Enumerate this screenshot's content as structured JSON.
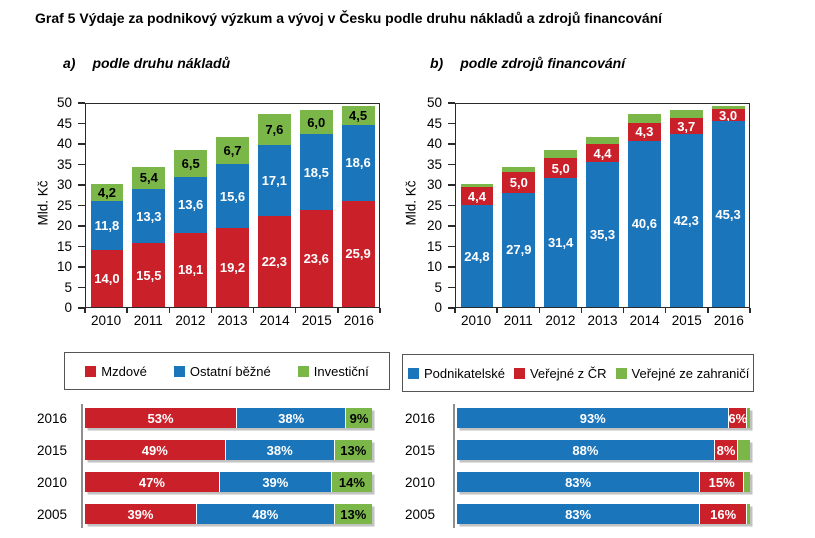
{
  "title": "Graf 5 Výdaje za podnikový výzkum a vývoj v Česku podle druhu nákladů a zdrojů financování",
  "palette": {
    "red": "#C9202A",
    "blue": "#1B75BB",
    "green": "#7AB648"
  },
  "chart_data": [
    {
      "type": "bar",
      "stacked": true,
      "prefix": "a)",
      "subtitle": "podle druhu nákladů",
      "ylabel": "Mld. Kč",
      "ymax": 50,
      "ystep": 5,
      "grid": false,
      "legend_position": "bottom",
      "categories": [
        "2010",
        "2011",
        "2012",
        "2013",
        "2014",
        "2015",
        "2016"
      ],
      "series": [
        {
          "name": "Mzdové",
          "color": "red",
          "label_color": "#FFFFFF",
          "values": [
            14.0,
            15.5,
            18.1,
            19.2,
            22.3,
            23.6,
            25.9
          ],
          "labels": [
            "14,0",
            "15,5",
            "18,1",
            "19,2",
            "22,3",
            "23,6",
            "25,9"
          ]
        },
        {
          "name": "Ostatní běžné",
          "color": "blue",
          "label_color": "#FFFFFF",
          "values": [
            11.8,
            13.3,
            13.6,
            15.6,
            17.1,
            18.5,
            18.6
          ],
          "labels": [
            "11,8",
            "13,3",
            "13,6",
            "15,6",
            "17,1",
            "18,5",
            "18,6"
          ]
        },
        {
          "name": "Investiční",
          "color": "green",
          "label_color": "#000000",
          "values": [
            4.2,
            5.4,
            6.5,
            6.7,
            7.6,
            6.0,
            4.5
          ],
          "labels": [
            "4,2",
            "5,4",
            "6,5",
            "6,7",
            "7,6",
            "6,0",
            "4,5"
          ]
        }
      ]
    },
    {
      "type": "bar",
      "stacked": true,
      "prefix": "b)",
      "subtitle": "podle zdrojů financování",
      "ylabel": "Mld. Kč",
      "ymax": 50,
      "ystep": 5,
      "grid": false,
      "legend_position": "bottom",
      "categories": [
        "2010",
        "2011",
        "2012",
        "2013",
        "2014",
        "2015",
        "2016"
      ],
      "series": [
        {
          "name": "Podnikatelské",
          "color": "blue",
          "label_color": "#FFFFFF",
          "values": [
            24.8,
            27.9,
            31.4,
            35.3,
            40.6,
            42.3,
            45.3
          ],
          "labels": [
            "24,8",
            "27,9",
            "31,4",
            "35,3",
            "40,6",
            "42,3",
            "45,3"
          ]
        },
        {
          "name": "Veřejné z ČR",
          "color": "red",
          "label_color": "#FFFFFF",
          "values": [
            4.4,
            5.0,
            5.0,
            4.4,
            4.3,
            3.7,
            3.0
          ],
          "labels": [
            "4,4",
            "5,0",
            "5,0",
            "4,4",
            "4,3",
            "3,7",
            "3,0"
          ]
        },
        {
          "name": "Veřejné ze zahraničí",
          "color": "green",
          "label_color": "#000000",
          "values": [
            0.8,
            1.3,
            1.8,
            1.8,
            2.1,
            2.1,
            0.7
          ],
          "labels": [
            "",
            "",
            "",
            "",
            "",
            "",
            ""
          ]
        }
      ]
    },
    {
      "type": "bar",
      "orientation": "horizontal",
      "stacked": true,
      "unit": "percent",
      "rows": [
        {
          "year": "2016",
          "segments": [
            {
              "color": "red",
              "value": 53,
              "label": "53%",
              "label_color": "#FFFFFF"
            },
            {
              "color": "blue",
              "value": 38,
              "label": "38%",
              "label_color": "#FFFFFF"
            },
            {
              "color": "green",
              "value": 9,
              "label": "9%",
              "label_color": "#000000"
            }
          ]
        },
        {
          "year": "2015",
          "segments": [
            {
              "color": "red",
              "value": 49,
              "label": "49%",
              "label_color": "#FFFFFF"
            },
            {
              "color": "blue",
              "value": 38,
              "label": "38%",
              "label_color": "#FFFFFF"
            },
            {
              "color": "green",
              "value": 13,
              "label": "13%",
              "label_color": "#000000"
            }
          ]
        },
        {
          "year": "2010",
          "segments": [
            {
              "color": "red",
              "value": 47,
              "label": "47%",
              "label_color": "#FFFFFF"
            },
            {
              "color": "blue",
              "value": 39,
              "label": "39%",
              "label_color": "#FFFFFF"
            },
            {
              "color": "green",
              "value": 14,
              "label": "14%",
              "label_color": "#000000"
            }
          ]
        },
        {
          "year": "2005",
          "segments": [
            {
              "color": "red",
              "value": 39,
              "label": "39%",
              "label_color": "#FFFFFF"
            },
            {
              "color": "blue",
              "value": 48,
              "label": "48%",
              "label_color": "#FFFFFF"
            },
            {
              "color": "green",
              "value": 13,
              "label": "13%",
              "label_color": "#000000"
            }
          ]
        }
      ]
    },
    {
      "type": "bar",
      "orientation": "horizontal",
      "stacked": true,
      "unit": "percent",
      "rows": [
        {
          "year": "2016",
          "segments": [
            {
              "color": "blue",
              "value": 93,
              "label": "93%",
              "label_color": "#FFFFFF"
            },
            {
              "color": "red",
              "value": 6,
              "label": "6%",
              "label_color": "#FFFFFF"
            },
            {
              "color": "green",
              "value": 1,
              "label": "",
              "label_color": "#000000"
            }
          ]
        },
        {
          "year": "2015",
          "segments": [
            {
              "color": "blue",
              "value": 88,
              "label": "88%",
              "label_color": "#FFFFFF"
            },
            {
              "color": "red",
              "value": 8,
              "label": "8%",
              "label_color": "#FFFFFF"
            },
            {
              "color": "green",
              "value": 4,
              "label": "",
              "label_color": "#000000"
            }
          ]
        },
        {
          "year": "2010",
          "segments": [
            {
              "color": "blue",
              "value": 83,
              "label": "83%",
              "label_color": "#FFFFFF"
            },
            {
              "color": "red",
              "value": 15,
              "label": "15%",
              "label_color": "#FFFFFF"
            },
            {
              "color": "green",
              "value": 2,
              "label": "",
              "label_color": "#000000"
            }
          ]
        },
        {
          "year": "2005",
          "segments": [
            {
              "color": "blue",
              "value": 83,
              "label": "83%",
              "label_color": "#FFFFFF"
            },
            {
              "color": "red",
              "value": 16,
              "label": "16%",
              "label_color": "#FFFFFF"
            },
            {
              "color": "green",
              "value": 1,
              "label": "",
              "label_color": "#000000"
            }
          ]
        }
      ]
    }
  ]
}
